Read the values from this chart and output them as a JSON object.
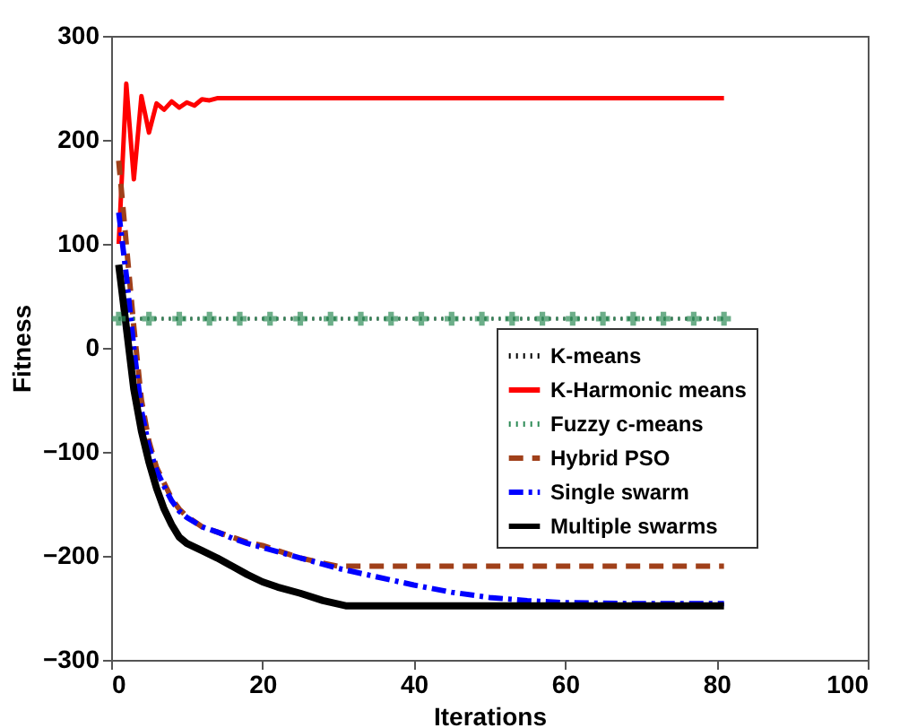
{
  "chart_data": {
    "type": "line",
    "xlabel": "Iterations",
    "ylabel": "Fitness",
    "xlim": [
      0,
      100
    ],
    "xticks": [
      0,
      20,
      40,
      60,
      80,
      100
    ],
    "ylim": [
      -300,
      300
    ],
    "yticks": [
      -300,
      -200,
      -100,
      0,
      100,
      200,
      300
    ],
    "grid": false,
    "legend": "right",
    "series": [
      {
        "name": "K-means",
        "color": "#000000",
        "line_style": "dotted",
        "marker": "none",
        "x": [
          1,
          81
        ],
        "values": [
          28,
          28
        ]
      },
      {
        "name": "K-Harmonic means",
        "color": "#ff0000",
        "line_style": "solid",
        "marker": "none",
        "x": [
          1,
          2,
          3,
          4,
          5,
          6,
          7,
          8,
          9,
          10,
          11,
          12,
          13,
          14,
          15,
          20,
          30,
          40,
          50,
          60,
          70,
          81
        ],
        "values": [
          100,
          254,
          162,
          242,
          207,
          235,
          229,
          237,
          231,
          236,
          233,
          239,
          238,
          240,
          240,
          240,
          240,
          240,
          240,
          240,
          240,
          240
        ]
      },
      {
        "name": "Fuzzy c-means",
        "color": "#2e8b57",
        "line_style": "dotted",
        "marker": "cross",
        "x": [
          1,
          5,
          9,
          13,
          17,
          21,
          25,
          29,
          33,
          37,
          41,
          45,
          49,
          53,
          57,
          61,
          65,
          69,
          73,
          77,
          81
        ],
        "values": [
          28,
          28,
          28,
          28,
          28,
          28,
          28,
          28,
          28,
          28,
          28,
          28,
          28,
          28,
          28,
          28,
          28,
          28,
          28,
          28,
          28
        ]
      },
      {
        "name": "Hybrid PSO",
        "color": "#a0401a",
        "line_style": "dashed",
        "marker": "none",
        "x": [
          1,
          2,
          3,
          4,
          5,
          6,
          7,
          8,
          9,
          10,
          12,
          14,
          16,
          18,
          20,
          22,
          25,
          28,
          30,
          81
        ],
        "values": [
          180,
          100,
          20,
          -50,
          -90,
          -115,
          -130,
          -145,
          -155,
          -162,
          -172,
          -177,
          -182,
          -187,
          -190,
          -195,
          -202,
          -207,
          -210,
          -210
        ]
      },
      {
        "name": "Single swarm",
        "color": "#0000ff",
        "line_style": "dashdot",
        "marker": "none",
        "x": [
          1,
          2,
          3,
          4,
          5,
          6,
          7,
          8,
          9,
          10,
          12,
          14,
          16,
          18,
          20,
          25,
          30,
          35,
          40,
          45,
          50,
          55,
          60,
          70,
          81
        ],
        "values": [
          130,
          70,
          0,
          -60,
          -95,
          -118,
          -133,
          -147,
          -157,
          -163,
          -172,
          -177,
          -183,
          -188,
          -192,
          -202,
          -212,
          -220,
          -228,
          -235,
          -240,
          -243,
          -245,
          -246,
          -246
        ]
      },
      {
        "name": "Multiple swarms",
        "color": "#000000",
        "line_style": "solid",
        "marker": "none",
        "x": [
          1,
          2,
          3,
          4,
          5,
          6,
          7,
          8,
          9,
          10,
          12,
          14,
          16,
          18,
          20,
          22,
          25,
          28,
          31,
          81
        ],
        "values": [
          80,
          20,
          -40,
          -80,
          -110,
          -135,
          -155,
          -170,
          -182,
          -188,
          -195,
          -202,
          -210,
          -218,
          -225,
          -230,
          -236,
          -243,
          -248,
          -248
        ]
      }
    ]
  }
}
